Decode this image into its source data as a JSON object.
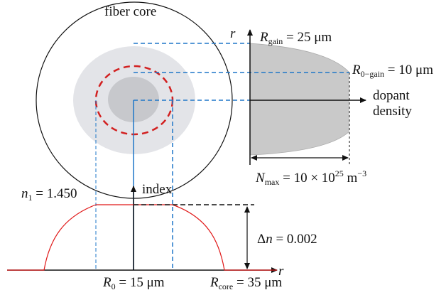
{
  "labels": {
    "fiber_core": "fiber core",
    "r_axis": "r",
    "r_gain_sym": "R",
    "r_gain_sub": "gain",
    "r_gain_val": " = 25 μm",
    "r0gain_sym": "R",
    "r0gain_sub": "0−gain",
    "r0gain_val": " = 10 μm",
    "dopant_1": "dopant",
    "dopant_2": "density",
    "nmax_sym": "N",
    "nmax_sub": "max",
    "nmax_val_a": " = 10 × 10",
    "nmax_exp": "25",
    "nmax_val_b": " m",
    "nmax_exp2": "−3",
    "index": "index",
    "n1_sym": "n",
    "n1_sub": "1",
    "n1_val": " = 1.450",
    "dn_sym": "Δ",
    "dn_n": "n",
    "dn_val": " = 0.002",
    "r0_sym": "R",
    "r0_sub": "0",
    "r0_val": " = 15 μm",
    "rcore_sym": "R",
    "rcore_sub": "core",
    "rcore_val": " = 35 μm"
  },
  "colors": {
    "gain_region": "#e3e4e8",
    "inner_core": "#c7c8cc",
    "dashed_circle": "#d22020",
    "guide_lines": "#1f77c8",
    "profile_fill": "#c9c9c9",
    "index_curve": "#e01818"
  }
}
